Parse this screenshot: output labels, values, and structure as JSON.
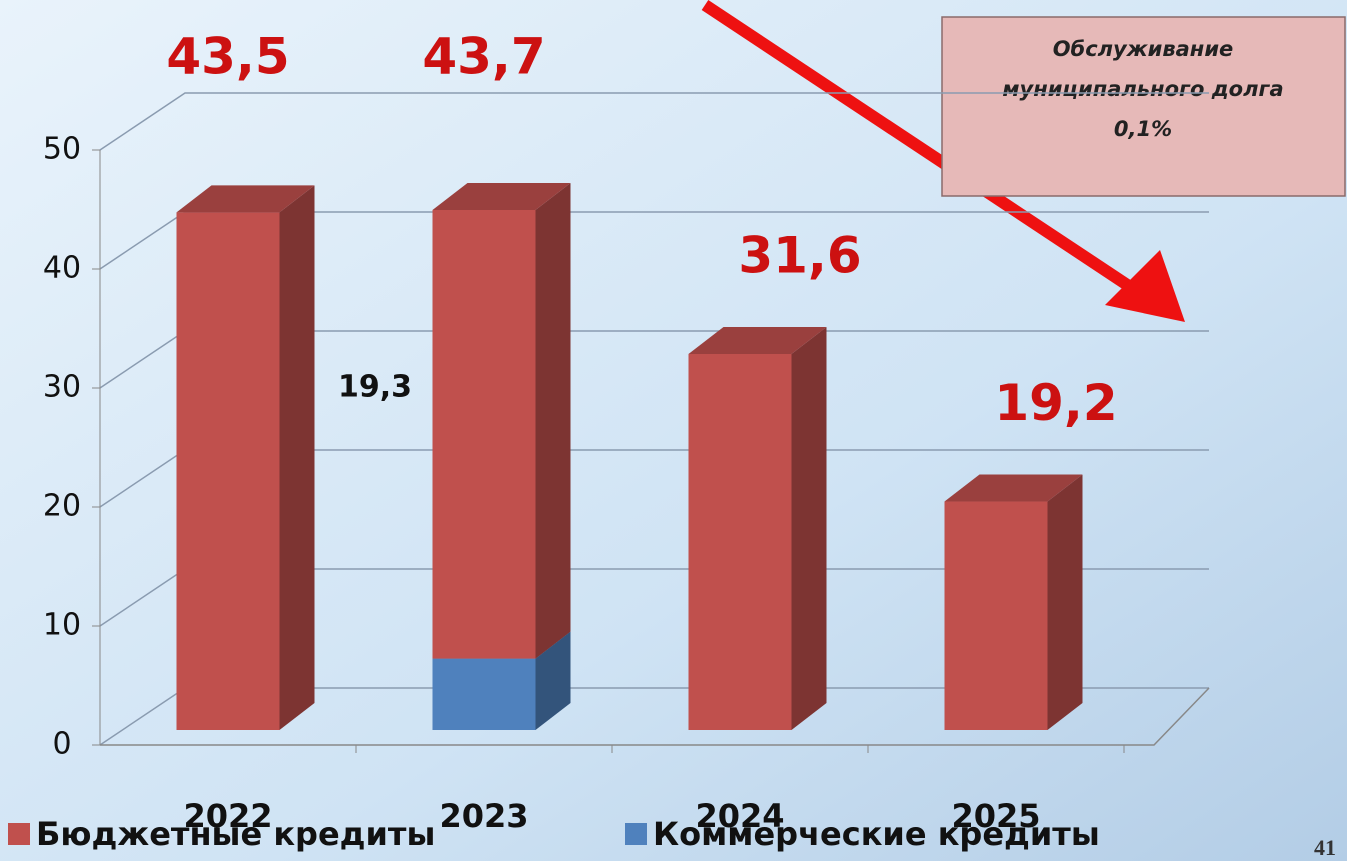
{
  "chart_data": {
    "type": "bar3d_stacked",
    "categories": [
      "2022",
      "2023",
      "2024",
      "2025"
    ],
    "series": [
      {
        "name": "Бюджетные кредиты",
        "color": "#c0504d",
        "values": [
          43.5,
          37.7,
          31.6,
          19.2
        ]
      },
      {
        "name": "Коммерческие кредиты",
        "color": "#4f81bd",
        "values": [
          0,
          6,
          0,
          0
        ]
      }
    ],
    "totals": [
      43.5,
      43.7,
      31.6,
      19.2
    ],
    "total_labels": [
      "43,5",
      "43,7",
      "31,6",
      "19,2"
    ],
    "annotation": "19,3",
    "ylim": [
      0,
      50
    ],
    "yticks": [
      0,
      10,
      20,
      30,
      40,
      50
    ],
    "grid": true,
    "callout": [
      "Обслуживание",
      "муниципального долга",
      "0,1%"
    ],
    "page_number": "41"
  }
}
